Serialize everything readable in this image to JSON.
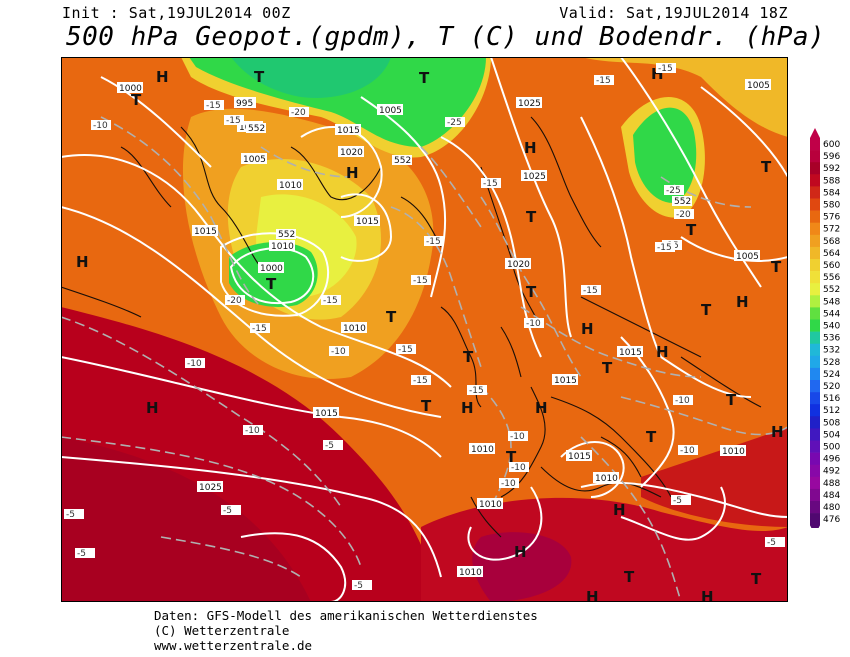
{
  "header": {
    "init_label": "Init : Sat,19JUL2014 00Z",
    "valid_label": "Valid: Sat,19JUL2014 18Z",
    "title": "500 hPa Geopot.(gpdm), T (C) und Bodendr. (hPa)"
  },
  "footer": {
    "line1": "Daten: GFS-Modell des amerikanischen Wetterdienstes",
    "line2": "(C) Wetterzentrale",
    "line3": "www.wetterzentrale.de"
  },
  "colorbar": {
    "labels": [
      "600",
      "596",
      "592",
      "588",
      "584",
      "580",
      "576",
      "572",
      "568",
      "564",
      "560",
      "556",
      "552",
      "548",
      "544",
      "540",
      "536",
      "532",
      "528",
      "524",
      "520",
      "516",
      "512",
      "508",
      "504",
      "500",
      "496",
      "492",
      "488",
      "484",
      "480",
      "476"
    ],
    "colors": [
      "#c00048",
      "#b8003c",
      "#a80028",
      "#c00820",
      "#d02818",
      "#e04810",
      "#e86810",
      "#f08818",
      "#f0a020",
      "#f0b828",
      "#f0d030",
      "#f0e038",
      "#e8f040",
      "#b0f040",
      "#60e040",
      "#30d848",
      "#20c8a0",
      "#20b8d8",
      "#20a8e8",
      "#2088f0",
      "#2068f0",
      "#1848e8",
      "#1030e0",
      "#2020c8",
      "#4018c0",
      "#6010b8",
      "#7808b0",
      "#8808a8",
      "#9808a0",
      "#800890",
      "#680880",
      "#500870"
    ]
  },
  "map_labels": {
    "highs": [
      "H",
      "H",
      "H",
      "H",
      "H",
      "H",
      "H",
      "H",
      "H",
      "H",
      "H",
      "H",
      "H",
      "H",
      "H",
      "H"
    ],
    "lows": [
      "T",
      "T",
      "T",
      "T",
      "T",
      "T",
      "T",
      "T",
      "T",
      "T",
      "T",
      "T",
      "T",
      "T",
      "T",
      "T",
      "T",
      "T",
      "T"
    ],
    "pressure": [
      "1000",
      "995",
      "1000",
      "1005",
      "1010",
      "1015",
      "1020",
      "1025",
      "1005",
      "1000",
      "1010",
      "1015",
      "1010",
      "1015",
      "1020",
      "1025",
      "1015",
      "1015",
      "1010",
      "1025",
      "1015",
      "1010",
      "1010",
      "1010",
      "1005",
      "1005",
      "1015",
      "1010"
    ],
    "temps": [
      "-10",
      "-15",
      "-15",
      "-20",
      "-25",
      "-15",
      "-15",
      "-15",
      "-15",
      "-20",
      "-15",
      "-15",
      "-10",
      "-15",
      "-15",
      "-10",
      "-15",
      "-10",
      "-10",
      "-10",
      "-10",
      "-5",
      "-5",
      "-5",
      "-5",
      "-5",
      "-5",
      "-10",
      "-15",
      "-20",
      "-25",
      "-15",
      "-10",
      "-15",
      "-15",
      "-10",
      "-5"
    ],
    "gpdm": [
      "552",
      "552",
      "552",
      "552"
    ]
  }
}
